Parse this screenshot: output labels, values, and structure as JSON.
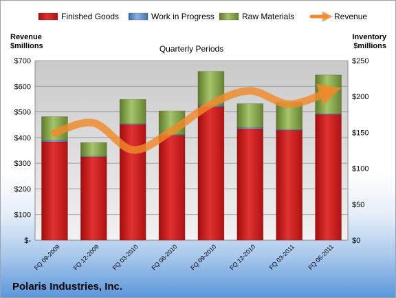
{
  "company": "Polaris Industries, Inc.",
  "chart_data": {
    "type": "bar",
    "subtitle": "Quarterly Periods",
    "left_axis_title": [
      "Revenue",
      "$millions"
    ],
    "right_axis_title": [
      "Inventory",
      "$millions"
    ],
    "categories": [
      "FQ 09-2009",
      "FQ 12-2009",
      "FQ 03-2010",
      "FQ 06-2010",
      "FQ 09-2010",
      "FQ 12-2010",
      "FQ 03-2011",
      "FQ 06-2011"
    ],
    "left_ticks": [
      "$-",
      "$100",
      "$200",
      "$300",
      "$400",
      "$500",
      "$600",
      "$700"
    ],
    "right_ticks": [
      "$0",
      "$50",
      "$100",
      "$150",
      "$200",
      "$250"
    ],
    "left_ylim": [
      0,
      700
    ],
    "right_ylim": [
      0,
      250
    ],
    "legend_position": "top",
    "grid": true,
    "series": [
      {
        "name": "Finished Goods",
        "axis": "right",
        "stacked": true,
        "color": "#c00000",
        "values": [
          137,
          116,
          161,
          146,
          186,
          155,
          153,
          175
        ]
      },
      {
        "name": "Work in Progress",
        "axis": "right",
        "stacked": true,
        "color": "#4f81bd",
        "values": [
          2,
          1,
          1,
          1,
          2,
          2,
          1,
          1
        ]
      },
      {
        "name": "Raw Materials",
        "axis": "right",
        "stacked": true,
        "color": "#77933c",
        "values": [
          33,
          19,
          34,
          33,
          47,
          33,
          38,
          54
        ]
      },
      {
        "name": "Revenue",
        "axis": "left",
        "type": "line",
        "color": "#f08a2a",
        "values": [
          418,
          457,
          352,
          426,
          530,
          582,
          530,
          578
        ]
      }
    ]
  }
}
